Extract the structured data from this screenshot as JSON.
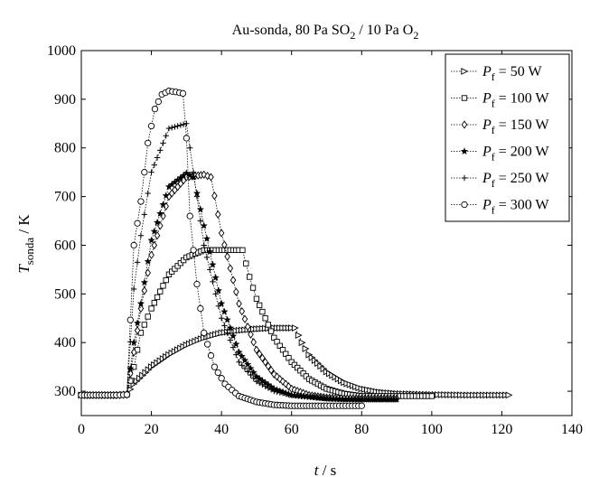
{
  "chart_data": {
    "type": "line",
    "title_parts": {
      "pre": "Au-sonda, 80 Pa SO",
      "sub1": "2",
      "mid": " / 10 Pa O",
      "sub2": "2"
    },
    "xlabel": {
      "main": "t",
      "unit": " / s"
    },
    "ylabel": {
      "main": "T",
      "sub": "sonda",
      "unit": " / K"
    },
    "xlim": [
      0,
      140
    ],
    "ylim": [
      250,
      1000
    ],
    "xticks": [
      0,
      20,
      40,
      60,
      80,
      100,
      120,
      140
    ],
    "yticks": [
      300,
      400,
      500,
      600,
      700,
      800,
      900,
      1000
    ],
    "grid": false,
    "legend_position": "top-right",
    "legend_symbol": "P",
    "legend_sub": "f",
    "series": [
      {
        "name": "50 W",
        "marker": "triangle-right",
        "x": [
          0,
          5,
          10,
          13,
          15,
          20,
          25,
          30,
          35,
          40,
          45,
          50,
          55,
          60,
          61,
          63,
          65,
          70,
          75,
          80,
          85,
          90,
          100,
          110,
          122
        ],
        "y": [
          292,
          292,
          292,
          293,
          315,
          350,
          375,
          395,
          410,
          420,
          425,
          428,
          430,
          430,
          430,
          400,
          375,
          340,
          318,
          305,
          298,
          295,
          293,
          292,
          292
        ]
      },
      {
        "name": "100 W",
        "marker": "square",
        "x": [
          0,
          5,
          10,
          13,
          15,
          17,
          20,
          25,
          30,
          35,
          40,
          45,
          46,
          48,
          50,
          55,
          60,
          65,
          70,
          75,
          80,
          90,
          100
        ],
        "y": [
          292,
          292,
          292,
          293,
          350,
          420,
          470,
          540,
          575,
          590,
          590,
          590,
          590,
          535,
          490,
          410,
          360,
          325,
          305,
          295,
          290,
          290,
          290
        ]
      },
      {
        "name": "150 W",
        "marker": "diamond",
        "x": [
          0,
          5,
          10,
          13,
          15,
          17,
          20,
          25,
          30,
          35,
          37,
          40,
          45,
          50,
          55,
          60,
          65,
          70,
          75,
          80,
          90
        ],
        "y": [
          292,
          292,
          292,
          293,
          380,
          470,
          580,
          700,
          740,
          745,
          740,
          625,
          480,
          385,
          335,
          305,
          292,
          287,
          285,
          285,
          285
        ]
      },
      {
        "name": "200 W",
        "marker": "star",
        "x": [
          0,
          5,
          10,
          13,
          15,
          17,
          20,
          25,
          30,
          32,
          35,
          40,
          45,
          50,
          55,
          60,
          65,
          70,
          80,
          90
        ],
        "y": [
          292,
          292,
          292,
          293,
          400,
          480,
          610,
          720,
          748,
          740,
          640,
          480,
          380,
          330,
          305,
          292,
          288,
          285,
          283,
          283
        ]
      },
      {
        "name": "250 W",
        "marker": "plus",
        "x": [
          0,
          5,
          10,
          13,
          15,
          17,
          20,
          25,
          30,
          31,
          33,
          35,
          40,
          45,
          50,
          55,
          60,
          70,
          80
        ],
        "y": [
          292,
          292,
          292,
          293,
          510,
          620,
          750,
          840,
          850,
          800,
          700,
          600,
          450,
          360,
          320,
          300,
          292,
          285,
          283
        ]
      },
      {
        "name": "300 W",
        "marker": "circle",
        "x": [
          0,
          5,
          10,
          13,
          15,
          17,
          19,
          21,
          23,
          25,
          27,
          29,
          30,
          31,
          33,
          35,
          38,
          41,
          45,
          50,
          55,
          60,
          65,
          70,
          80
        ],
        "y": [
          292,
          292,
          292,
          293,
          600,
          690,
          810,
          880,
          910,
          917,
          915,
          912,
          820,
          660,
          520,
          420,
          350,
          315,
          290,
          278,
          272,
          270,
          270,
          270,
          270
        ]
      }
    ]
  }
}
